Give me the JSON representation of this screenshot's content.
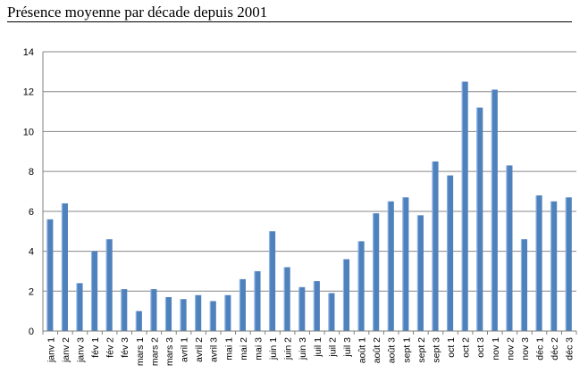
{
  "page_title": "Présence moyenne par décade depuis 2001",
  "chart_data": {
    "type": "bar",
    "title": "Présence moyenne par décade depuis 2001",
    "xlabel": "",
    "ylabel": "",
    "ylim": [
      0,
      14
    ],
    "yticks": [
      0,
      2,
      4,
      6,
      8,
      10,
      12,
      14
    ],
    "grid": true,
    "legend": "none",
    "categories": [
      "janv 1",
      "janv 2",
      "janv 3",
      "fév 1",
      "fév 2",
      "fév 3",
      "mars 1",
      "mars 2",
      "mars 3",
      "avril 1",
      "avril 2",
      "avril 3",
      "mai 1",
      "mai 2",
      "mai 3",
      "juin 1",
      "juin 2",
      "juin 3",
      "juil 1",
      "juil 2",
      "juil 3",
      "août 1",
      "août 2",
      "août 3",
      "sept 1",
      "sept 2",
      "sept 3",
      "oct 1",
      "oct 2",
      "oct 3",
      "nov 1",
      "nov 2",
      "nov 3",
      "déc 1",
      "déc 2",
      "déc 3"
    ],
    "values": [
      5.6,
      6.4,
      2.4,
      4.0,
      4.6,
      2.1,
      1.0,
      2.1,
      1.7,
      1.6,
      1.8,
      1.5,
      1.8,
      2.6,
      3.0,
      5.0,
      3.2,
      2.2,
      2.5,
      1.9,
      3.6,
      4.5,
      5.9,
      6.5,
      6.7,
      5.8,
      8.5,
      7.8,
      12.5,
      11.2,
      12.1,
      8.3,
      4.6,
      6.8,
      6.5,
      6.7
    ],
    "colors": {
      "bar": "#4f81bd",
      "bar_highlight": "#8eb4e3",
      "grid": "#878787",
      "axis": "#808080",
      "text": "#000000"
    }
  }
}
